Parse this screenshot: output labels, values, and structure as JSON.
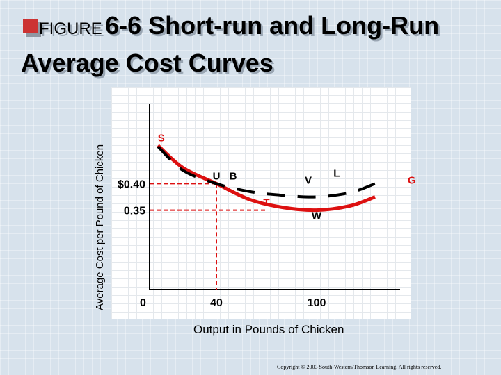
{
  "title": {
    "prefix": "FIGURE",
    "main": "6-6 Short-run and Long-Run Average Cost Curves"
  },
  "icons": {
    "bullet": "square-bullet-icon"
  },
  "colors": {
    "short_run_curve": "#dd1111",
    "long_run_curve": "#000000",
    "guide_lines": "#dd1111"
  },
  "chart_data": {
    "type": "line",
    "xlabel": "Output in Pounds of Chicken",
    "ylabel": "Average Cost per Pound of Chicken",
    "x_ticks": [
      "0",
      "40",
      "100"
    ],
    "y_ticks": [
      "$0.40",
      "0.35"
    ],
    "xlim": [
      0,
      150
    ],
    "ylim": [
      0.2,
      0.55
    ],
    "series": [
      {
        "name": "",
        "style": "long-run dashed black",
        "x": [
          5,
          20,
          40,
          60,
          80,
          100,
          120,
          135
        ],
        "y": [
          0.47,
          0.425,
          0.4,
          0.385,
          0.378,
          0.375,
          0.383,
          0.4
        ]
      },
      {
        "name": "",
        "style": "short-run red",
        "x": [
          5,
          20,
          40,
          60,
          80,
          100,
          120,
          135
        ],
        "y": [
          0.472,
          0.43,
          0.4,
          0.37,
          0.355,
          0.35,
          0.358,
          0.375
        ]
      }
    ],
    "points": [
      {
        "label": "S",
        "x": 7,
        "y": 0.48
      },
      {
        "label": "U",
        "x": 40,
        "y": 0.408
      },
      {
        "label": "B",
        "x": 50,
        "y": 0.408
      },
      {
        "label": "T",
        "x": 70,
        "y": 0.358
      },
      {
        "label": "V",
        "x": 95,
        "y": 0.4
      },
      {
        "label": "L",
        "x": 112,
        "y": 0.413
      },
      {
        "label": "W",
        "x": 100,
        "y": 0.333
      },
      {
        "label": "G",
        "x": 157,
        "y": 0.4
      }
    ],
    "guides": [
      {
        "from": [
          0,
          0.4
        ],
        "to": [
          40,
          0.4
        ]
      },
      {
        "from": [
          40,
          0.4
        ],
        "to": [
          40,
          0.2
        ]
      },
      {
        "from": [
          0,
          0.35
        ],
        "to": [
          70,
          0.35
        ]
      }
    ]
  },
  "footer": {
    "copyright": "Copyright © 2003 South-Western/Thomson Learning. All rights reserved."
  }
}
